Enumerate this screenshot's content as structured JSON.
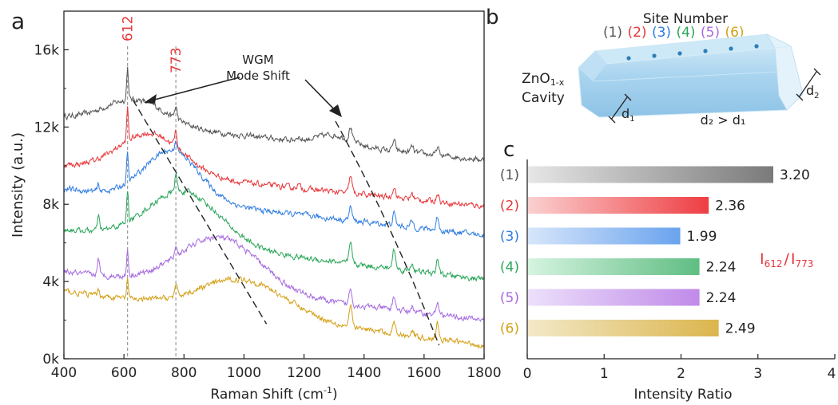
{
  "panels": {
    "a": "a",
    "b": "b",
    "c": "c"
  },
  "schematic": {
    "title": "Site Number",
    "cavity_line1": "ZnO",
    "cavity_sub": "1-x",
    "cavity_line2": "Cavity",
    "d1": "d",
    "d1_sub": "1",
    "d2": "d",
    "d2_sub": "2",
    "relation": "d₂ > d₁",
    "sites": [
      {
        "label": "(1)",
        "color": "#555555"
      },
      {
        "label": "(2)",
        "color": "#e8373b"
      },
      {
        "label": "(3)",
        "color": "#2f7de1"
      },
      {
        "label": "(4)",
        "color": "#2aa65a"
      },
      {
        "label": "(5)",
        "color": "#a66be0"
      },
      {
        "label": "(6)",
        "color": "#d4a017"
      }
    ]
  },
  "chart_data": [
    {
      "type": "line",
      "xlabel": "Raman Shift (cm",
      "xlabel_sup": "-1",
      "xlabel_end": ")",
      "ylabel": "Intensity (a.u.)",
      "xlim": [
        400,
        1800
      ],
      "ylim": [
        0,
        18000
      ],
      "xticks": [
        400,
        600,
        800,
        1000,
        1200,
        1400,
        1600,
        1800
      ],
      "yticks": [
        {
          "value": 0,
          "label": "0k"
        },
        {
          "value": 4000,
          "label": "4k"
        },
        {
          "value": 8000,
          "label": "8k"
        },
        {
          "value": 12000,
          "label": "12k"
        },
        {
          "value": 16000,
          "label": "16k"
        }
      ],
      "reference_lines": [
        {
          "x": 612,
          "label": "612",
          "color": "#e8373b"
        },
        {
          "x": 773,
          "label": "773",
          "color": "#e8373b"
        }
      ],
      "annotation": {
        "line1": "WGM",
        "line2": "Mode Shift"
      },
      "dashed_guides": [
        {
          "x": [
            630,
            1075
          ],
          "y": [
            13400,
            1800
          ]
        },
        {
          "x": [
            1305,
            1650
          ],
          "y": [
            12300,
            700
          ]
        }
      ],
      "series": [
        {
          "color": "#555555",
          "baseline": 12500,
          "end": 10300,
          "hump": {
            "center": 640,
            "height": 1300,
            "width": 140
          },
          "hump2": {
            "center": 1300,
            "height": 500,
            "width": 80
          }
        },
        {
          "color": "#e8373b",
          "baseline": 10000,
          "end": 7900,
          "hump": {
            "center": 690,
            "height": 2100,
            "width": 150
          },
          "hump2": {
            "center": 1300,
            "height": 0,
            "width": 80
          }
        },
        {
          "color": "#2f7de1",
          "baseline": 8800,
          "end": 6400,
          "hump": {
            "center": 760,
            "height": 2600,
            "width": 130
          },
          "hump2": {
            "center": 1300,
            "height": 0,
            "width": 80
          }
        },
        {
          "color": "#2aa65a",
          "baseline": 6700,
          "end": 4100,
          "hump": {
            "center": 800,
            "height": 2700,
            "width": 170
          },
          "hump2": {
            "center": 1300,
            "height": 0,
            "width": 80
          }
        },
        {
          "color": "#a66be0",
          "baseline": 4500,
          "end": 2000,
          "hump": {
            "center": 920,
            "height": 2700,
            "width": 190
          },
          "hump2": {
            "center": 1300,
            "height": 0,
            "width": 80
          }
        },
        {
          "color": "#d4a017",
          "baseline": 3500,
          "end": 700,
          "hump": {
            "center": 1000,
            "height": 1800,
            "width": 200
          },
          "hump2": {
            "center": 1300,
            "height": 0,
            "width": 80
          }
        }
      ],
      "peaks": [
        {
          "center": 612,
          "heights": [
            1700,
            1700,
            1500,
            1700,
            1400,
            1100
          ],
          "width": 4
        },
        {
          "center": 773,
          "heights": [
            600,
            800,
            600,
            900,
            500,
            500
          ],
          "width": 6
        },
        {
          "center": 515,
          "heights": [
            0,
            0,
            300,
            700,
            900,
            300
          ],
          "width": 5
        },
        {
          "center": 1180,
          "heights": [
            200,
            200,
            0,
            0,
            0,
            0
          ],
          "width": 8
        },
        {
          "center": 1355,
          "heights": [
            700,
            900,
            700,
            1000,
            800,
            1000
          ],
          "width": 7
        },
        {
          "center": 1500,
          "heights": [
            500,
            600,
            600,
            1000,
            700,
            600
          ],
          "width": 7
        },
        {
          "center": 1560,
          "heights": [
            300,
            300,
            300,
            400,
            300,
            300
          ],
          "width": 7
        },
        {
          "center": 1645,
          "heights": [
            400,
            500,
            700,
            800,
            700,
            800
          ],
          "width": 6
        }
      ]
    },
    {
      "type": "bar",
      "orientation": "horizontal",
      "xlabel": "Intensity Ratio",
      "xlim": [
        0,
        4
      ],
      "xticks": [
        0,
        1,
        2,
        3,
        4
      ],
      "ratio_label": {
        "base1": "I",
        "sub1": "612",
        "slash": "/",
        "base2": "I",
        "sub2": "773"
      },
      "categories": [
        "(1)",
        "(2)",
        "(3)",
        "(4)",
        "(5)",
        "(6)"
      ],
      "values": [
        3.2,
        2.36,
        1.99,
        2.24,
        2.24,
        2.49
      ],
      "value_labels": [
        "3.20",
        "2.36",
        "1.99",
        "2.24",
        "2.24",
        "2.49"
      ],
      "colors": [
        {
          "light": "#e6e6e6",
          "dark": "#7a7a7a",
          "label": "#555555"
        },
        {
          "light": "#fbd0d0",
          "dark": "#ee3e43",
          "label": "#e8373b"
        },
        {
          "light": "#d7e6fa",
          "dark": "#6aa3ee",
          "label": "#2f7de1"
        },
        {
          "light": "#d6f4e1",
          "dark": "#5fbd82",
          "label": "#2aa65a"
        },
        {
          "light": "#ece0fb",
          "dark": "#c08ae9",
          "label": "#a66be0"
        },
        {
          "light": "#f3e9c9",
          "dark": "#dbb54d",
          "label": "#d4a017"
        }
      ]
    }
  ]
}
